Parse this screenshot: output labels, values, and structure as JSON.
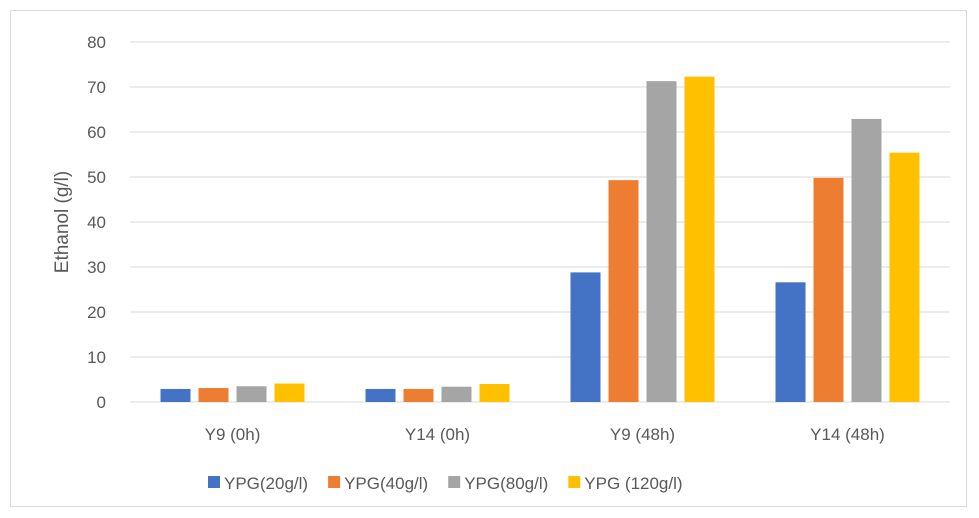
{
  "chart_data": {
    "type": "bar",
    "title": "",
    "xlabel": "",
    "ylabel": "Ethanol (g/l)",
    "ylim": [
      0,
      80
    ],
    "yticks": [
      0,
      10,
      20,
      30,
      40,
      50,
      60,
      70,
      80
    ],
    "grid": true,
    "legend_position": "bottom",
    "categories": [
      "Y9 (0h)",
      "Y14 (0h)",
      "Y9 (48h)",
      "Y14 (48h)"
    ],
    "series": [
      {
        "name": "YPG(20g/l)",
        "color": "#4472C4",
        "values": [
          2.9,
          2.9,
          28.8,
          26.6
        ]
      },
      {
        "name": "YPG(40g/l)",
        "color": "#ED7D31",
        "values": [
          3.1,
          2.9,
          49.3,
          49.8
        ]
      },
      {
        "name": "YPG(80g/l)",
        "color": "#A5A5A5",
        "values": [
          3.5,
          3.4,
          71.3,
          62.9
        ]
      },
      {
        "name": "YPG (120g/l)",
        "color": "#FFC000",
        "values": [
          4.1,
          4.0,
          72.3,
          55.4
        ]
      }
    ]
  }
}
